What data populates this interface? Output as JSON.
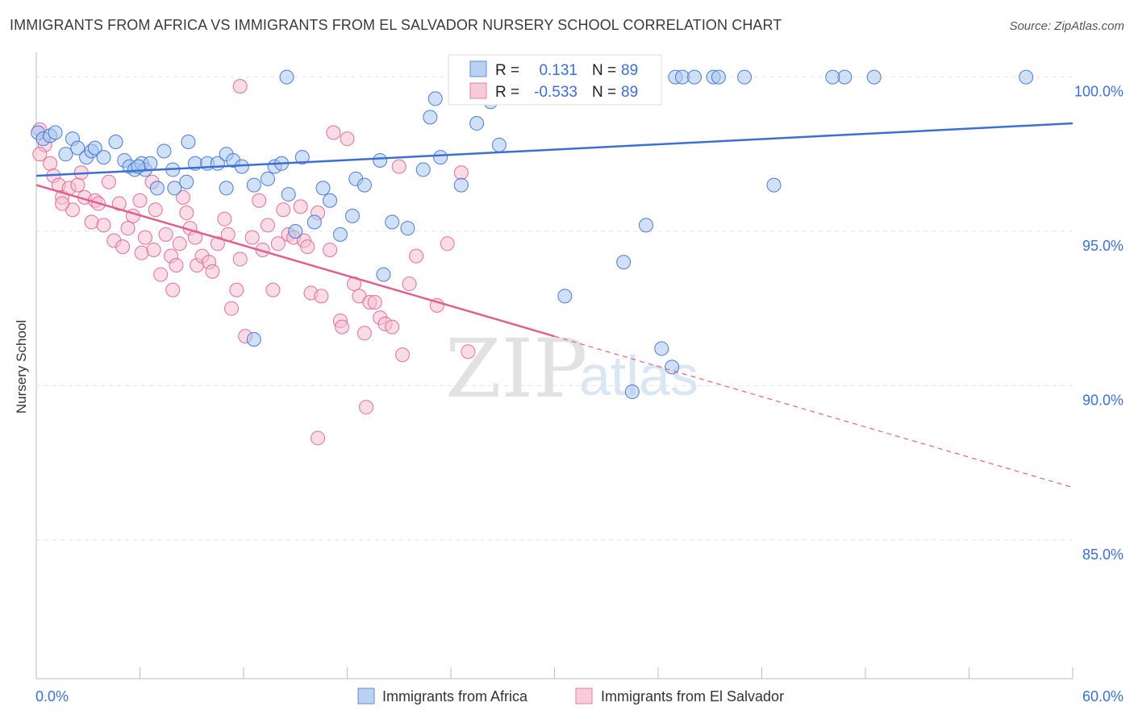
{
  "title": "IMMIGRANTS FROM AFRICA VS IMMIGRANTS FROM EL SALVADOR NURSERY SCHOOL CORRELATION CHART",
  "source": "Source: ZipAtlas.com",
  "watermark": {
    "zip": "ZIP",
    "atlas": "atlas"
  },
  "colors": {
    "blue": "#3b6fd4",
    "blue_fill": "#aac6ee",
    "pink": "#e2608c",
    "pink_fill": "#f6bfd2"
  },
  "stats": [
    {
      "r_label": "R =",
      "r_value": "0.131",
      "n_label": "N =",
      "n_value": "89"
    },
    {
      "r_label": "R =",
      "r_value": "-0.533",
      "n_label": "N =",
      "n_value": "89"
    }
  ],
  "chart_data": {
    "type": "scatter",
    "xlabel": "",
    "ylabel": "Nursery School",
    "xlim": [
      0,
      60
    ],
    "ylim": [
      80.5,
      100.8
    ],
    "x_tick_labels": [
      "0.0%",
      "60.0%"
    ],
    "y_ticks": [
      100,
      95,
      90,
      85
    ],
    "y_tick_labels": [
      "100.0%",
      "95.0%",
      "90.0%",
      "85.0%"
    ],
    "grid": true,
    "legend_position": "bottom",
    "series": [
      {
        "name": "Immigrants from Africa",
        "color": "#3b6fd4",
        "trend": {
          "x": [
            0,
            60
          ],
          "y": [
            96.8,
            98.5
          ]
        },
        "points": [
          [
            0.1,
            98.2
          ],
          [
            0.4,
            98.0
          ],
          [
            0.8,
            98.1
          ],
          [
            1.1,
            98.2
          ],
          [
            1.7,
            97.5
          ],
          [
            2.1,
            98.0
          ],
          [
            2.4,
            97.7
          ],
          [
            2.9,
            97.4
          ],
          [
            3.2,
            97.6
          ],
          [
            3.4,
            97.7
          ],
          [
            3.9,
            97.4
          ],
          [
            4.6,
            97.9
          ],
          [
            5.1,
            97.3
          ],
          [
            5.4,
            97.1
          ],
          [
            5.7,
            97.0
          ],
          [
            6.1,
            97.2
          ],
          [
            6.3,
            97.0
          ],
          [
            6.6,
            97.2
          ],
          [
            7.0,
            96.4
          ],
          [
            7.4,
            97.6
          ],
          [
            7.9,
            97.0
          ],
          [
            8.0,
            96.4
          ],
          [
            8.7,
            96.6
          ],
          [
            9.2,
            97.2
          ],
          [
            8.8,
            97.9
          ],
          [
            9.9,
            97.2
          ],
          [
            10.5,
            97.2
          ],
          [
            11.0,
            97.5
          ],
          [
            11.4,
            97.3
          ],
          [
            11.9,
            97.1
          ],
          [
            11.0,
            96.4
          ],
          [
            12.6,
            96.5
          ],
          [
            13.4,
            96.7
          ],
          [
            13.8,
            97.1
          ],
          [
            14.2,
            97.2
          ],
          [
            14.6,
            96.2
          ],
          [
            15.4,
            97.4
          ],
          [
            15.0,
            95.0
          ],
          [
            16.1,
            95.3
          ],
          [
            16.6,
            96.4
          ],
          [
            17.0,
            96.0
          ],
          [
            17.6,
            94.9
          ],
          [
            18.3,
            95.5
          ],
          [
            18.5,
            96.7
          ],
          [
            19.0,
            96.5
          ],
          [
            19.9,
            97.3
          ],
          [
            20.6,
            95.3
          ],
          [
            20.1,
            93.6
          ],
          [
            21.5,
            95.1
          ],
          [
            22.4,
            97.0
          ],
          [
            22.8,
            98.7
          ],
          [
            23.1,
            99.3
          ],
          [
            23.4,
            97.4
          ],
          [
            24.6,
            96.5
          ],
          [
            25.5,
            98.5
          ],
          [
            26.3,
            99.2
          ],
          [
            26.8,
            97.8
          ],
          [
            25.7,
            100.0
          ],
          [
            28.7,
            100.0
          ],
          [
            30.6,
            92.9
          ],
          [
            29.6,
            100.0
          ],
          [
            32.2,
            100.0
          ],
          [
            33.5,
            100.0
          ],
          [
            34.7,
            100.0
          ],
          [
            35.6,
            100.0
          ],
          [
            37.0,
            100.0
          ],
          [
            37.4,
            100.0
          ],
          [
            38.1,
            100.0
          ],
          [
            39.2,
            100.0
          ],
          [
            39.5,
            100.0
          ],
          [
            14.5,
            100.0
          ],
          [
            26.1,
            100.0
          ],
          [
            27.6,
            100.0
          ],
          [
            27.9,
            100.0
          ],
          [
            41.0,
            100.0
          ],
          [
            48.5,
            100.0
          ],
          [
            57.3,
            100.0
          ],
          [
            46.8,
            100.0
          ],
          [
            46.1,
            100.0
          ],
          [
            28.7,
            100.0
          ],
          [
            34.0,
            94.0
          ],
          [
            35.3,
            95.2
          ],
          [
            29.4,
            100.0
          ],
          [
            34.5,
            89.8
          ],
          [
            36.2,
            91.2
          ],
          [
            36.8,
            90.6
          ],
          [
            42.7,
            96.5
          ],
          [
            12.6,
            91.5
          ],
          [
            5.9,
            97.1
          ]
        ]
      },
      {
        "name": "Immigrants from El Salvador",
        "color": "#e2608c",
        "trend": {
          "x": [
            0,
            30
          ],
          "y": [
            96.5,
            91.6
          ]
        },
        "trend_dashed": {
          "x": [
            30,
            60
          ],
          "y": [
            91.6,
            86.7
          ]
        },
        "points": [
          [
            0.2,
            98.3
          ],
          [
            0.5,
            97.8
          ],
          [
            0.8,
            97.2
          ],
          [
            1.0,
            96.8
          ],
          [
            1.3,
            96.5
          ],
          [
            1.5,
            96.1
          ],
          [
            1.9,
            96.4
          ],
          [
            2.1,
            95.7
          ],
          [
            2.6,
            96.9
          ],
          [
            2.8,
            96.1
          ],
          [
            3.2,
            95.3
          ],
          [
            3.4,
            96.0
          ],
          [
            3.6,
            95.9
          ],
          [
            3.9,
            95.2
          ],
          [
            4.2,
            96.6
          ],
          [
            4.5,
            94.7
          ],
          [
            4.8,
            95.9
          ],
          [
            5.0,
            94.5
          ],
          [
            5.3,
            95.1
          ],
          [
            5.6,
            95.5
          ],
          [
            6.0,
            96.0
          ],
          [
            6.1,
            94.3
          ],
          [
            6.3,
            94.8
          ],
          [
            6.7,
            96.6
          ],
          [
            6.8,
            94.4
          ],
          [
            6.9,
            95.7
          ],
          [
            7.2,
            93.6
          ],
          [
            7.5,
            94.9
          ],
          [
            7.8,
            94.2
          ],
          [
            7.9,
            93.1
          ],
          [
            8.1,
            93.9
          ],
          [
            8.3,
            94.6
          ],
          [
            8.5,
            96.1
          ],
          [
            8.7,
            95.6
          ],
          [
            8.9,
            95.1
          ],
          [
            9.2,
            94.8
          ],
          [
            9.3,
            93.9
          ],
          [
            9.6,
            94.2
          ],
          [
            10.0,
            94.0
          ],
          [
            10.2,
            93.7
          ],
          [
            10.5,
            94.6
          ],
          [
            10.9,
            95.4
          ],
          [
            11.1,
            94.9
          ],
          [
            11.3,
            92.5
          ],
          [
            11.6,
            93.1
          ],
          [
            11.8,
            94.1
          ],
          [
            12.1,
            91.6
          ],
          [
            12.5,
            94.8
          ],
          [
            12.9,
            96.0
          ],
          [
            13.1,
            94.4
          ],
          [
            13.4,
            95.2
          ],
          [
            13.7,
            93.1
          ],
          [
            14.0,
            94.6
          ],
          [
            14.3,
            95.7
          ],
          [
            14.6,
            94.9
          ],
          [
            14.9,
            94.8
          ],
          [
            15.3,
            95.8
          ],
          [
            15.5,
            94.7
          ],
          [
            15.7,
            94.5
          ],
          [
            15.9,
            93.0
          ],
          [
            16.3,
            95.6
          ],
          [
            16.5,
            92.9
          ],
          [
            17.0,
            94.4
          ],
          [
            17.2,
            98.2
          ],
          [
            17.6,
            92.1
          ],
          [
            17.7,
            91.9
          ],
          [
            18.0,
            98.0
          ],
          [
            18.4,
            93.3
          ],
          [
            18.7,
            92.9
          ],
          [
            19.0,
            91.7
          ],
          [
            19.3,
            92.7
          ],
          [
            19.6,
            92.7
          ],
          [
            19.9,
            92.2
          ],
          [
            20.2,
            92.0
          ],
          [
            20.6,
            91.9
          ],
          [
            21.0,
            97.1
          ],
          [
            21.2,
            91.0
          ],
          [
            21.6,
            93.3
          ],
          [
            22.0,
            94.2
          ],
          [
            23.2,
            92.6
          ],
          [
            23.8,
            94.6
          ],
          [
            24.6,
            96.9
          ],
          [
            25.0,
            91.1
          ],
          [
            19.1,
            89.3
          ],
          [
            16.3,
            88.3
          ],
          [
            11.8,
            99.7
          ],
          [
            0.2,
            97.5
          ],
          [
            1.5,
            95.9
          ],
          [
            2.4,
            96.5
          ]
        ]
      }
    ]
  }
}
